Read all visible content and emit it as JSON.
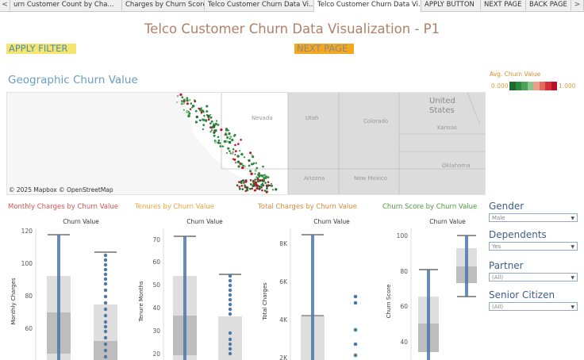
{
  "tabs": [
    "urn Customer Count by Cha...",
    "Charges by Churn Score",
    "Telco Customer Churn Data Vi...",
    "Telco Customer Churn Data Vi...",
    "APPLY BUTTON",
    "NEXT PAGE",
    "BACK PAGE"
  ],
  "tab_nav": {
    "prev": "<",
    "next": ">"
  },
  "title": "Telco Customer Churn Data Visualization - P1",
  "buttons": {
    "apply": "APPLY FILTER",
    "next": "NEXT PAGE"
  },
  "map": {
    "title": "Geographic Churn Value",
    "credit": "© 2025 Mapbox © OpenStreetMap",
    "labels": [
      "Nevada",
      "Utah",
      "Colorado",
      "Kansas",
      "Arizona",
      "New Mexico",
      "Oklahoma"
    ],
    "country_label": [
      "United",
      "States"
    ]
  },
  "legend": {
    "title": "Avg. Churn Value",
    "min": "0.000",
    "max": "1.000",
    "colors": [
      "#1e6a2e",
      "#2c8a3e",
      "#4aa356",
      "#8cc48e",
      "#e9a08a",
      "#e06a5c",
      "#d4303a",
      "#b8102a"
    ]
  },
  "charts": [
    {
      "title": "Monthly Charges by Churn Value",
      "title_color": "#d9534f",
      "header": "Churn Value",
      "ylabel": "Monthly Charges",
      "ticks": [
        "120",
        "100",
        "80",
        "60"
      ]
    },
    {
      "title": "Tenures by Churn Value",
      "title_color": "#f0a637",
      "header": "Churn Value",
      "ylabel": "Tenure Months",
      "ticks": [
        "70",
        "60",
        "50",
        "40",
        "30",
        "20"
      ]
    },
    {
      "title": "Total Charges by Churn Value",
      "title_color": "#e08a3a",
      "header": "Churn Value",
      "ylabel": "Total Charges",
      "ticks": [
        "8K",
        "6K",
        "4K",
        "2K"
      ]
    },
    {
      "title": "Churn Score by Churn Value",
      "title_color": "#4a9a3e",
      "header": "Churn Value",
      "ylabel": "Churn Score",
      "ticks": [
        "100",
        "80",
        "60",
        "40"
      ]
    }
  ],
  "filters": [
    {
      "label": "Gender",
      "value": "Male"
    },
    {
      "label": "Dependents",
      "value": "Yes"
    },
    {
      "label": "Partner",
      "value": "(All)"
    },
    {
      "label": "Senior Citizen",
      "value": "(All)"
    }
  ]
}
